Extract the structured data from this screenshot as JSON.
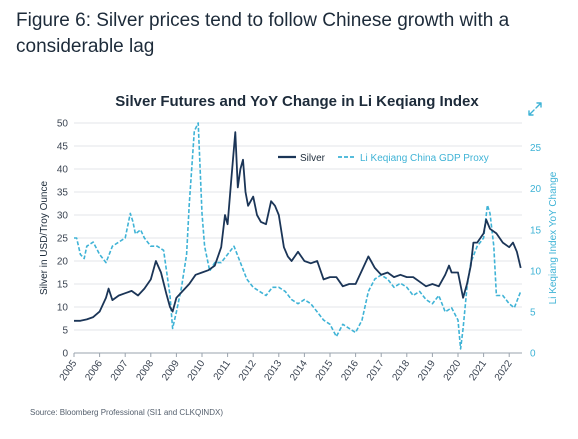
{
  "figure_title": "Figure 6: Silver prices tend to follow Chinese growth with a considerable lag",
  "source": "Source: Bloomberg Professional (SI1 and CLKQINDX)",
  "colors": {
    "silver": "#1b3557",
    "gdp": "#3fb3d6",
    "title": "#1d2b3a",
    "grid": "#e3e6ea",
    "axis_text": "#3b4452"
  },
  "icons": {
    "expand": "expand-icon"
  },
  "chart_data": {
    "type": "line",
    "title": "Silver Futures and YoY Change in Li Keqiang Index",
    "ylabel_left": "Silver in USD/Troy Ounce",
    "ylabel_right": "Li Keqiang Index YoY Change",
    "ylim_left": [
      0,
      50
    ],
    "ylim_right": [
      0,
      28
    ],
    "xlim": [
      2005,
      2022.5
    ],
    "yticks_left": [
      0,
      5,
      10,
      15,
      20,
      25,
      30,
      35,
      40,
      45,
      50
    ],
    "yticks_right": [
      0,
      5,
      10,
      15,
      20,
      25
    ],
    "xticks": [
      "2005",
      "2006",
      "2007",
      "2008",
      "2009",
      "2010",
      "2011",
      "2012",
      "2013",
      "2014",
      "2015",
      "2016",
      "2017",
      "2018",
      "2019",
      "2020",
      "2021",
      "2022"
    ],
    "grid": true,
    "legend_position": "top-right",
    "series": [
      {
        "name": "Silver",
        "axis": "left",
        "style": "solid",
        "x": [
          2005.0,
          2005.25,
          2005.5,
          2005.75,
          2006.0,
          2006.25,
          2006.35,
          2006.5,
          2006.75,
          2007.0,
          2007.25,
          2007.5,
          2007.75,
          2008.0,
          2008.2,
          2008.4,
          2008.6,
          2008.75,
          2008.85,
          2009.0,
          2009.25,
          2009.5,
          2009.75,
          2010.0,
          2010.25,
          2010.5,
          2010.75,
          2010.9,
          2011.0,
          2011.15,
          2011.3,
          2011.4,
          2011.5,
          2011.6,
          2011.7,
          2011.8,
          2012.0,
          2012.15,
          2012.3,
          2012.5,
          2012.7,
          2012.85,
          2013.0,
          2013.2,
          2013.35,
          2013.5,
          2013.75,
          2014.0,
          2014.25,
          2014.5,
          2014.75,
          2015.0,
          2015.25,
          2015.5,
          2015.75,
          2016.0,
          2016.25,
          2016.5,
          2016.6,
          2016.75,
          2017.0,
          2017.25,
          2017.5,
          2017.75,
          2018.0,
          2018.25,
          2018.5,
          2018.75,
          2019.0,
          2019.25,
          2019.5,
          2019.65,
          2019.75,
          2020.0,
          2020.2,
          2020.35,
          2020.5,
          2020.6,
          2020.75,
          2021.0,
          2021.1,
          2021.25,
          2021.5,
          2021.75,
          2022.0,
          2022.15,
          2022.3,
          2022.45
        ],
        "values": [
          7,
          7,
          7.3,
          7.8,
          9,
          12,
          14,
          11.5,
          12.5,
          13,
          13.5,
          12.5,
          14,
          16,
          20,
          17.5,
          13,
          10,
          9,
          12,
          13.5,
          15,
          17,
          17.5,
          18,
          19,
          23,
          30,
          28,
          38,
          48,
          36,
          40,
          42,
          35,
          32,
          34,
          30,
          28.5,
          28,
          33,
          32,
          30,
          23,
          21,
          20,
          22,
          20,
          19.5,
          20,
          16,
          16.5,
          16.5,
          14.5,
          15,
          15,
          18,
          21,
          20,
          18.5,
          17,
          17.5,
          16.5,
          17,
          16.5,
          16.5,
          15.5,
          14.5,
          15,
          14.5,
          17,
          19,
          17.5,
          17.5,
          12,
          15,
          19,
          24,
          24,
          26,
          29,
          27,
          26,
          24,
          23,
          24,
          22,
          18.5
        ]
      },
      {
        "name": "Li Keqiang China GDP Proxy",
        "axis": "right",
        "style": "dashed",
        "x": [
          2005.0,
          2005.1,
          2005.25,
          2005.4,
          2005.5,
          2005.75,
          2006.0,
          2006.25,
          2006.5,
          2006.75,
          2007.0,
          2007.2,
          2007.3,
          2007.4,
          2007.6,
          2007.75,
          2008.0,
          2008.25,
          2008.5,
          2008.75,
          2008.85,
          2009.0,
          2009.2,
          2009.4,
          2009.5,
          2009.7,
          2009.85,
          2010.0,
          2010.1,
          2010.3,
          2010.5,
          2010.75,
          2011.0,
          2011.25,
          2011.5,
          2011.75,
          2012.0,
          2012.25,
          2012.5,
          2012.75,
          2013.0,
          2013.25,
          2013.5,
          2013.75,
          2014.0,
          2014.25,
          2014.5,
          2014.75,
          2015.0,
          2015.25,
          2015.5,
          2015.75,
          2016.0,
          2016.25,
          2016.5,
          2016.75,
          2017.0,
          2017.25,
          2017.5,
          2017.75,
          2018.0,
          2018.25,
          2018.5,
          2018.75,
          2019.0,
          2019.25,
          2019.5,
          2019.75,
          2020.0,
          2020.1,
          2020.2,
          2020.35,
          2020.5,
          2020.75,
          2021.0,
          2021.15,
          2021.25,
          2021.4,
          2021.5,
          2021.75,
          2022.0,
          2022.2,
          2022.45
        ],
        "values": [
          14,
          14,
          12,
          11.5,
          13,
          13.5,
          12,
          11,
          13,
          13.5,
          14,
          17,
          16,
          14.5,
          15,
          14,
          13,
          13,
          12.5,
          7,
          3,
          5,
          8,
          12,
          18,
          27,
          28,
          17,
          13,
          10,
          11,
          11,
          12,
          13,
          11,
          9,
          8,
          7.5,
          7,
          8,
          8,
          7.5,
          6.5,
          6,
          6.5,
          6,
          5,
          4,
          3.5,
          2,
          3.5,
          3,
          2.5,
          4,
          7.5,
          9,
          9.5,
          9,
          8,
          8.5,
          8,
          7,
          7.5,
          6.5,
          6,
          7,
          5,
          5.5,
          4,
          0.5,
          3,
          8,
          11,
          13,
          14,
          18,
          17,
          13,
          7,
          7,
          6,
          5.5,
          7.5
        ]
      }
    ]
  }
}
